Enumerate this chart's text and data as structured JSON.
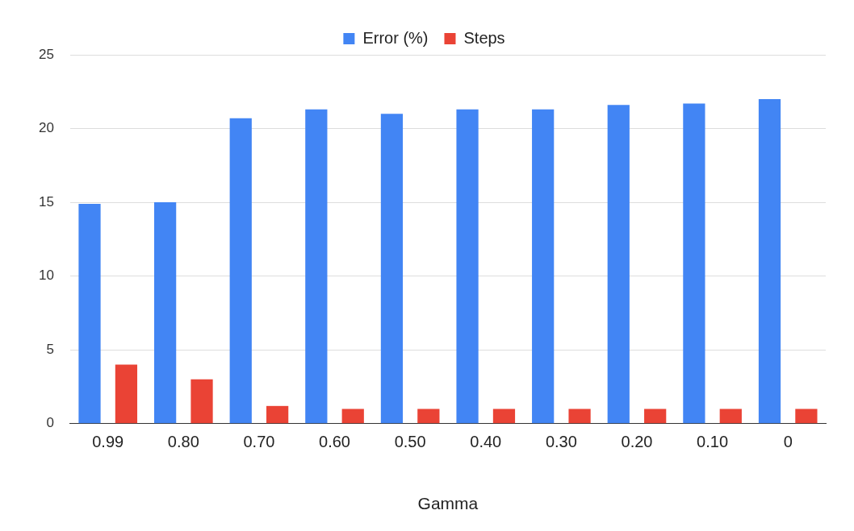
{
  "chart_data": {
    "type": "bar",
    "xlabel": "Gamma",
    "categories": [
      "0.99",
      "0.80",
      "0.70",
      "0.60",
      "0.50",
      "0.40",
      "0.30",
      "0.20",
      "0.10",
      "0"
    ],
    "series": [
      {
        "name": "Error (%)",
        "color": "#4285f4",
        "values": [
          14.9,
          15.0,
          20.7,
          21.3,
          21.0,
          21.3,
          21.3,
          21.6,
          21.7,
          22.0
        ]
      },
      {
        "name": "Steps",
        "color": "#ea4335",
        "values": [
          4.0,
          3.0,
          1.2,
          1.0,
          1.0,
          1.0,
          1.0,
          1.0,
          1.0,
          1.0
        ]
      }
    ],
    "ylim": [
      0,
      25
    ],
    "yticks": [
      0,
      5,
      10,
      15,
      20,
      25
    ],
    "grid": "y",
    "legend": "top"
  }
}
